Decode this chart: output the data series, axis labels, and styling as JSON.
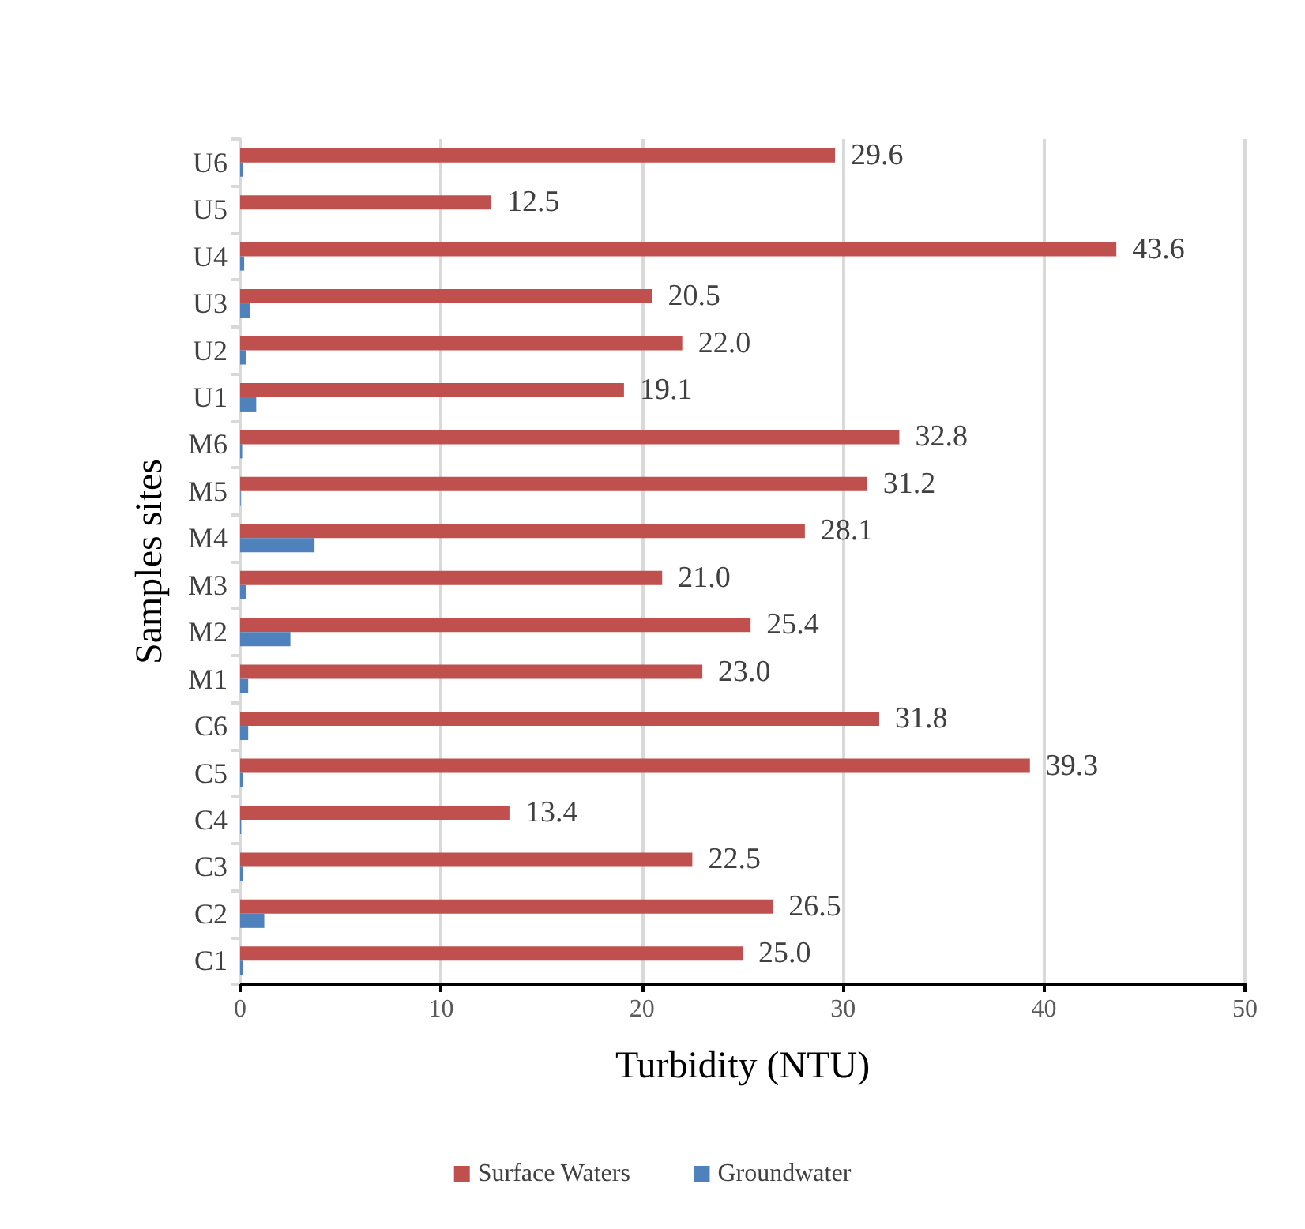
{
  "chart_data": {
    "type": "bar",
    "orientation": "horizontal",
    "xlabel": "Turbidity (NTU)",
    "ylabel": "Samples sites",
    "categories": [
      "U6",
      "U5",
      "U4",
      "U3",
      "U2",
      "U1",
      "M6",
      "M5",
      "M4",
      "M3",
      "M2",
      "M1",
      "C6",
      "C5",
      "C4",
      "C3",
      "C2",
      "C1"
    ],
    "series": [
      {
        "name": "Surface Waters",
        "color": "#c0504d",
        "values": [
          29.6,
          12.5,
          43.6,
          20.5,
          22.0,
          19.1,
          32.8,
          31.2,
          28.1,
          21.0,
          25.4,
          23.0,
          31.8,
          39.3,
          13.4,
          22.5,
          26.5,
          25.0
        ],
        "value_labels": [
          "29.6",
          "12.5",
          "43.6",
          "20.5",
          "22.0",
          "19.1",
          "32.8",
          "31.2",
          "28.1",
          "21.0",
          "25.4",
          "23.0",
          "31.8",
          "39.3",
          "13.4",
          "22.5",
          "26.5",
          "25.0"
        ]
      },
      {
        "name": "Groundwater",
        "color": "#4f81bd",
        "values": [
          0.15,
          null,
          0.2,
          0.5,
          0.3,
          0.8,
          0.1,
          0.03,
          3.7,
          0.3,
          2.5,
          0.4,
          0.4,
          0.15,
          0.05,
          0.13,
          1.2,
          0.15
        ]
      }
    ],
    "xlim": [
      0,
      50
    ],
    "xticks": [
      0,
      10,
      20,
      30,
      40,
      50
    ],
    "grid": "x",
    "legend": "bottom"
  }
}
